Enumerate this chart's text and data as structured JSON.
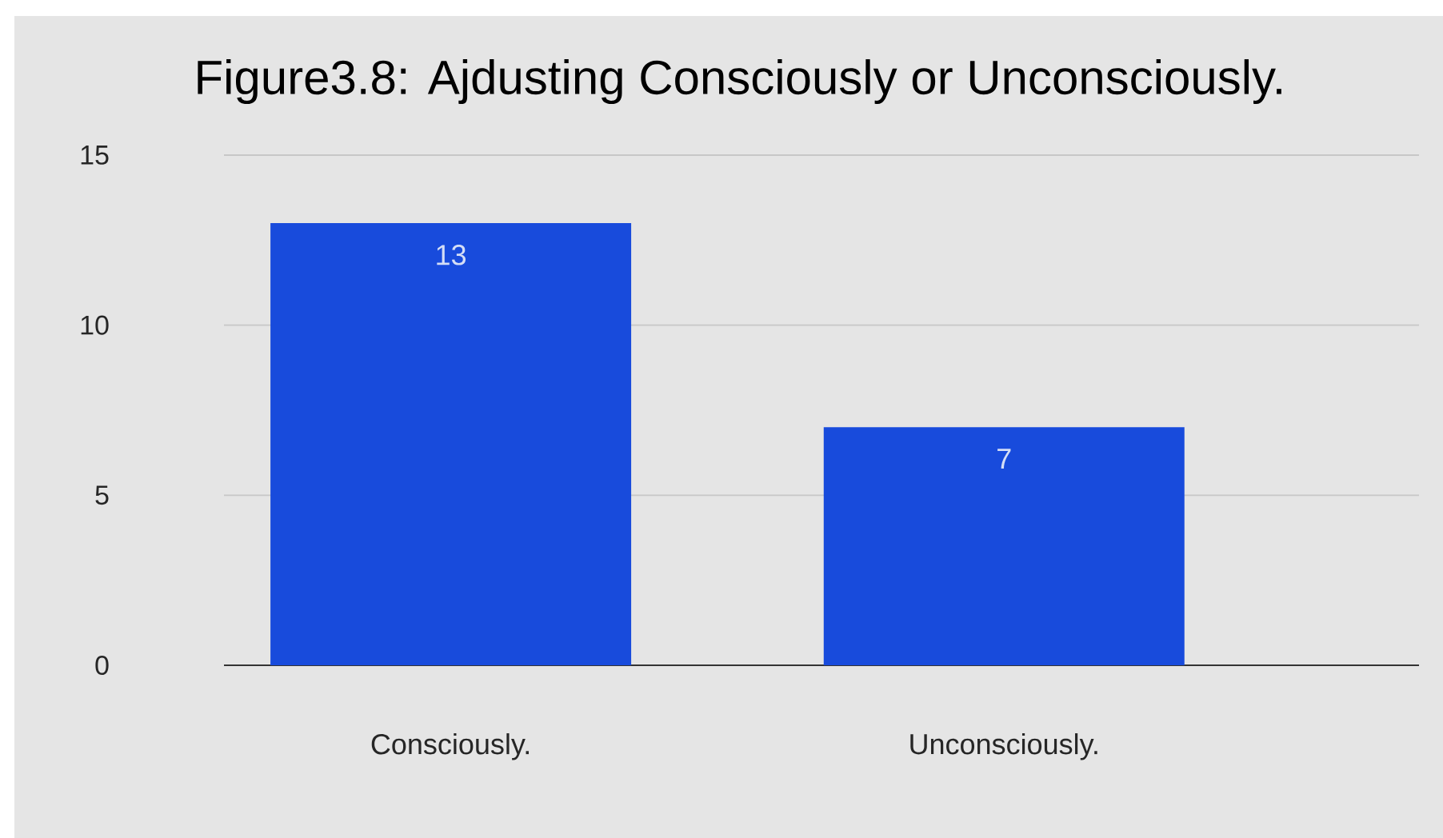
{
  "chart_data": {
    "type": "bar",
    "title": "Figure3.8: Ajdusting  Consciously or Unconsciously.",
    "categories": [
      "Consciously.",
      "Unconsciously."
    ],
    "values": [
      13,
      7
    ],
    "color": "#184bdc",
    "ylim": [
      0,
      15
    ],
    "yticks": [
      0,
      5,
      10,
      15
    ],
    "grid": "y",
    "data_labels": true
  }
}
